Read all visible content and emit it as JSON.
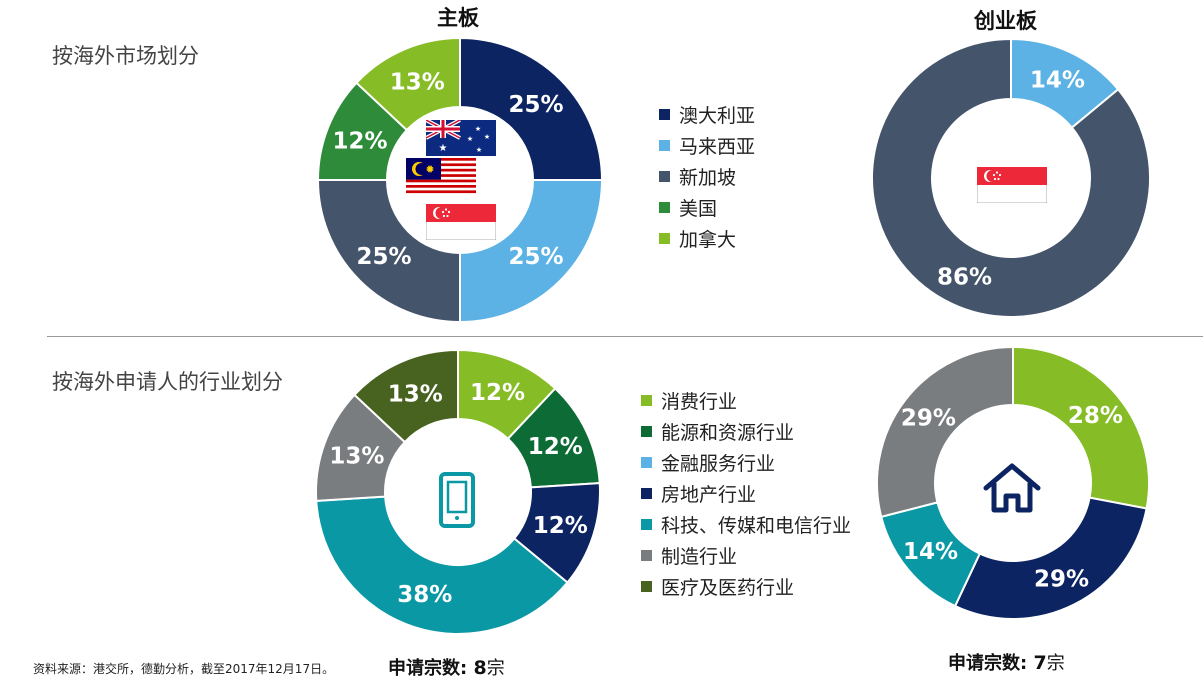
{
  "titles": {
    "main_board": "主板",
    "gem_board": "创业板"
  },
  "sections": {
    "market": "按海外市场划分",
    "industry": "按海外申请人的行业划分"
  },
  "colors": {
    "dark_navy": "#0c2461",
    "light_blue": "#5cb2e4",
    "slate": "#44546a",
    "green": "#2e8b3a",
    "lime": "#86bc25",
    "dark_green": "#0d6b36",
    "navy2": "#0c2461",
    "teal": "#0a98a5",
    "gray": "#7a7d80",
    "olive": "#48631f"
  },
  "legend_market": [
    {
      "label": "澳大利亚",
      "color": "#0c2461"
    },
    {
      "label": "马来西亚",
      "color": "#5cb2e4"
    },
    {
      "label": "新加坡",
      "color": "#44546a"
    },
    {
      "label": "美国",
      "color": "#2e8b3a"
    },
    {
      "label": "加拿大",
      "color": "#86bc25"
    }
  ],
  "legend_industry": [
    {
      "label": "消费行业",
      "color": "#86bc25"
    },
    {
      "label": "能源和资源行业",
      "color": "#0d6b36"
    },
    {
      "label": "金融服务行业",
      "color": "#5cb2e4"
    },
    {
      "label": "房地产行业",
      "color": "#0c2461"
    },
    {
      "label": "科技、传媒和电信行业",
      "color": "#0a98a5"
    },
    {
      "label": "制造行业",
      "color": "#7a7d80"
    },
    {
      "label": "医疗及医药行业",
      "color": "#48631f"
    }
  ],
  "footer": {
    "source": "资料来源：港交所，德勤分析，截至2017年12月17日。",
    "main_count_label": "申请宗数: ",
    "main_count_value": "8",
    "main_count_unit": "宗",
    "gem_count_label": "申请宗数: ",
    "gem_count_value": "7",
    "gem_count_unit": "宗"
  },
  "icons": [
    "australia-flag-icon",
    "malaysia-flag-icon",
    "singapore-flag-icon",
    "tablet-icon",
    "house-icon"
  ],
  "chart_data": [
    {
      "type": "pie",
      "title": "主板",
      "section": "按海外市场划分",
      "slices": [
        {
          "label": "澳大利亚",
          "value": 25,
          "text": "25%",
          "color": "#0c2461"
        },
        {
          "label": "马来西亚",
          "value": 25,
          "text": "25%",
          "color": "#5cb2e4"
        },
        {
          "label": "新加坡",
          "value": 25,
          "text": "25%",
          "color": "#44546a"
        },
        {
          "label": "美国",
          "value": 12,
          "text": "12%",
          "color": "#2e8b3a"
        },
        {
          "label": "加拿大",
          "value": 13,
          "text": "13%",
          "color": "#86bc25"
        }
      ]
    },
    {
      "type": "pie",
      "title": "创业板",
      "section": "按海外市场划分",
      "slices": [
        {
          "label": "马来西亚",
          "value": 14,
          "text": "14%",
          "color": "#5cb2e4"
        },
        {
          "label": "新加坡",
          "value": 86,
          "text": "86%",
          "color": "#44546a"
        }
      ]
    },
    {
      "type": "pie",
      "title": "主板",
      "section": "按海外申请人的行业划分",
      "slices": [
        {
          "label": "消费行业",
          "value": 12,
          "text": "12%",
          "color": "#86bc25"
        },
        {
          "label": "能源和资源行业",
          "value": 12,
          "text": "12%",
          "color": "#0d6b36"
        },
        {
          "label": "房地产行业",
          "value": 12,
          "text": "12%",
          "color": "#0c2461"
        },
        {
          "label": "科技、传媒和电信行业",
          "value": 38,
          "text": "38%",
          "color": "#0a98a5"
        },
        {
          "label": "制造行业",
          "value": 13,
          "text": "13%",
          "color": "#7a7d80"
        },
        {
          "label": "医疗及医药行业",
          "value": 13,
          "text": "13%",
          "color": "#48631f"
        }
      ]
    },
    {
      "type": "pie",
      "title": "创业板",
      "section": "按海外申请人的行业划分",
      "slices": [
        {
          "label": "消费行业",
          "value": 28,
          "text": "28%",
          "color": "#86bc25"
        },
        {
          "label": "房地产行业",
          "value": 29,
          "text": "29%",
          "color": "#0c2461"
        },
        {
          "label": "科技、传媒和电信行业",
          "value": 14,
          "text": "14%",
          "color": "#0a98a5"
        },
        {
          "label": "制造行业",
          "value": 29,
          "text": "29%",
          "color": "#7a7d80"
        }
      ]
    }
  ]
}
